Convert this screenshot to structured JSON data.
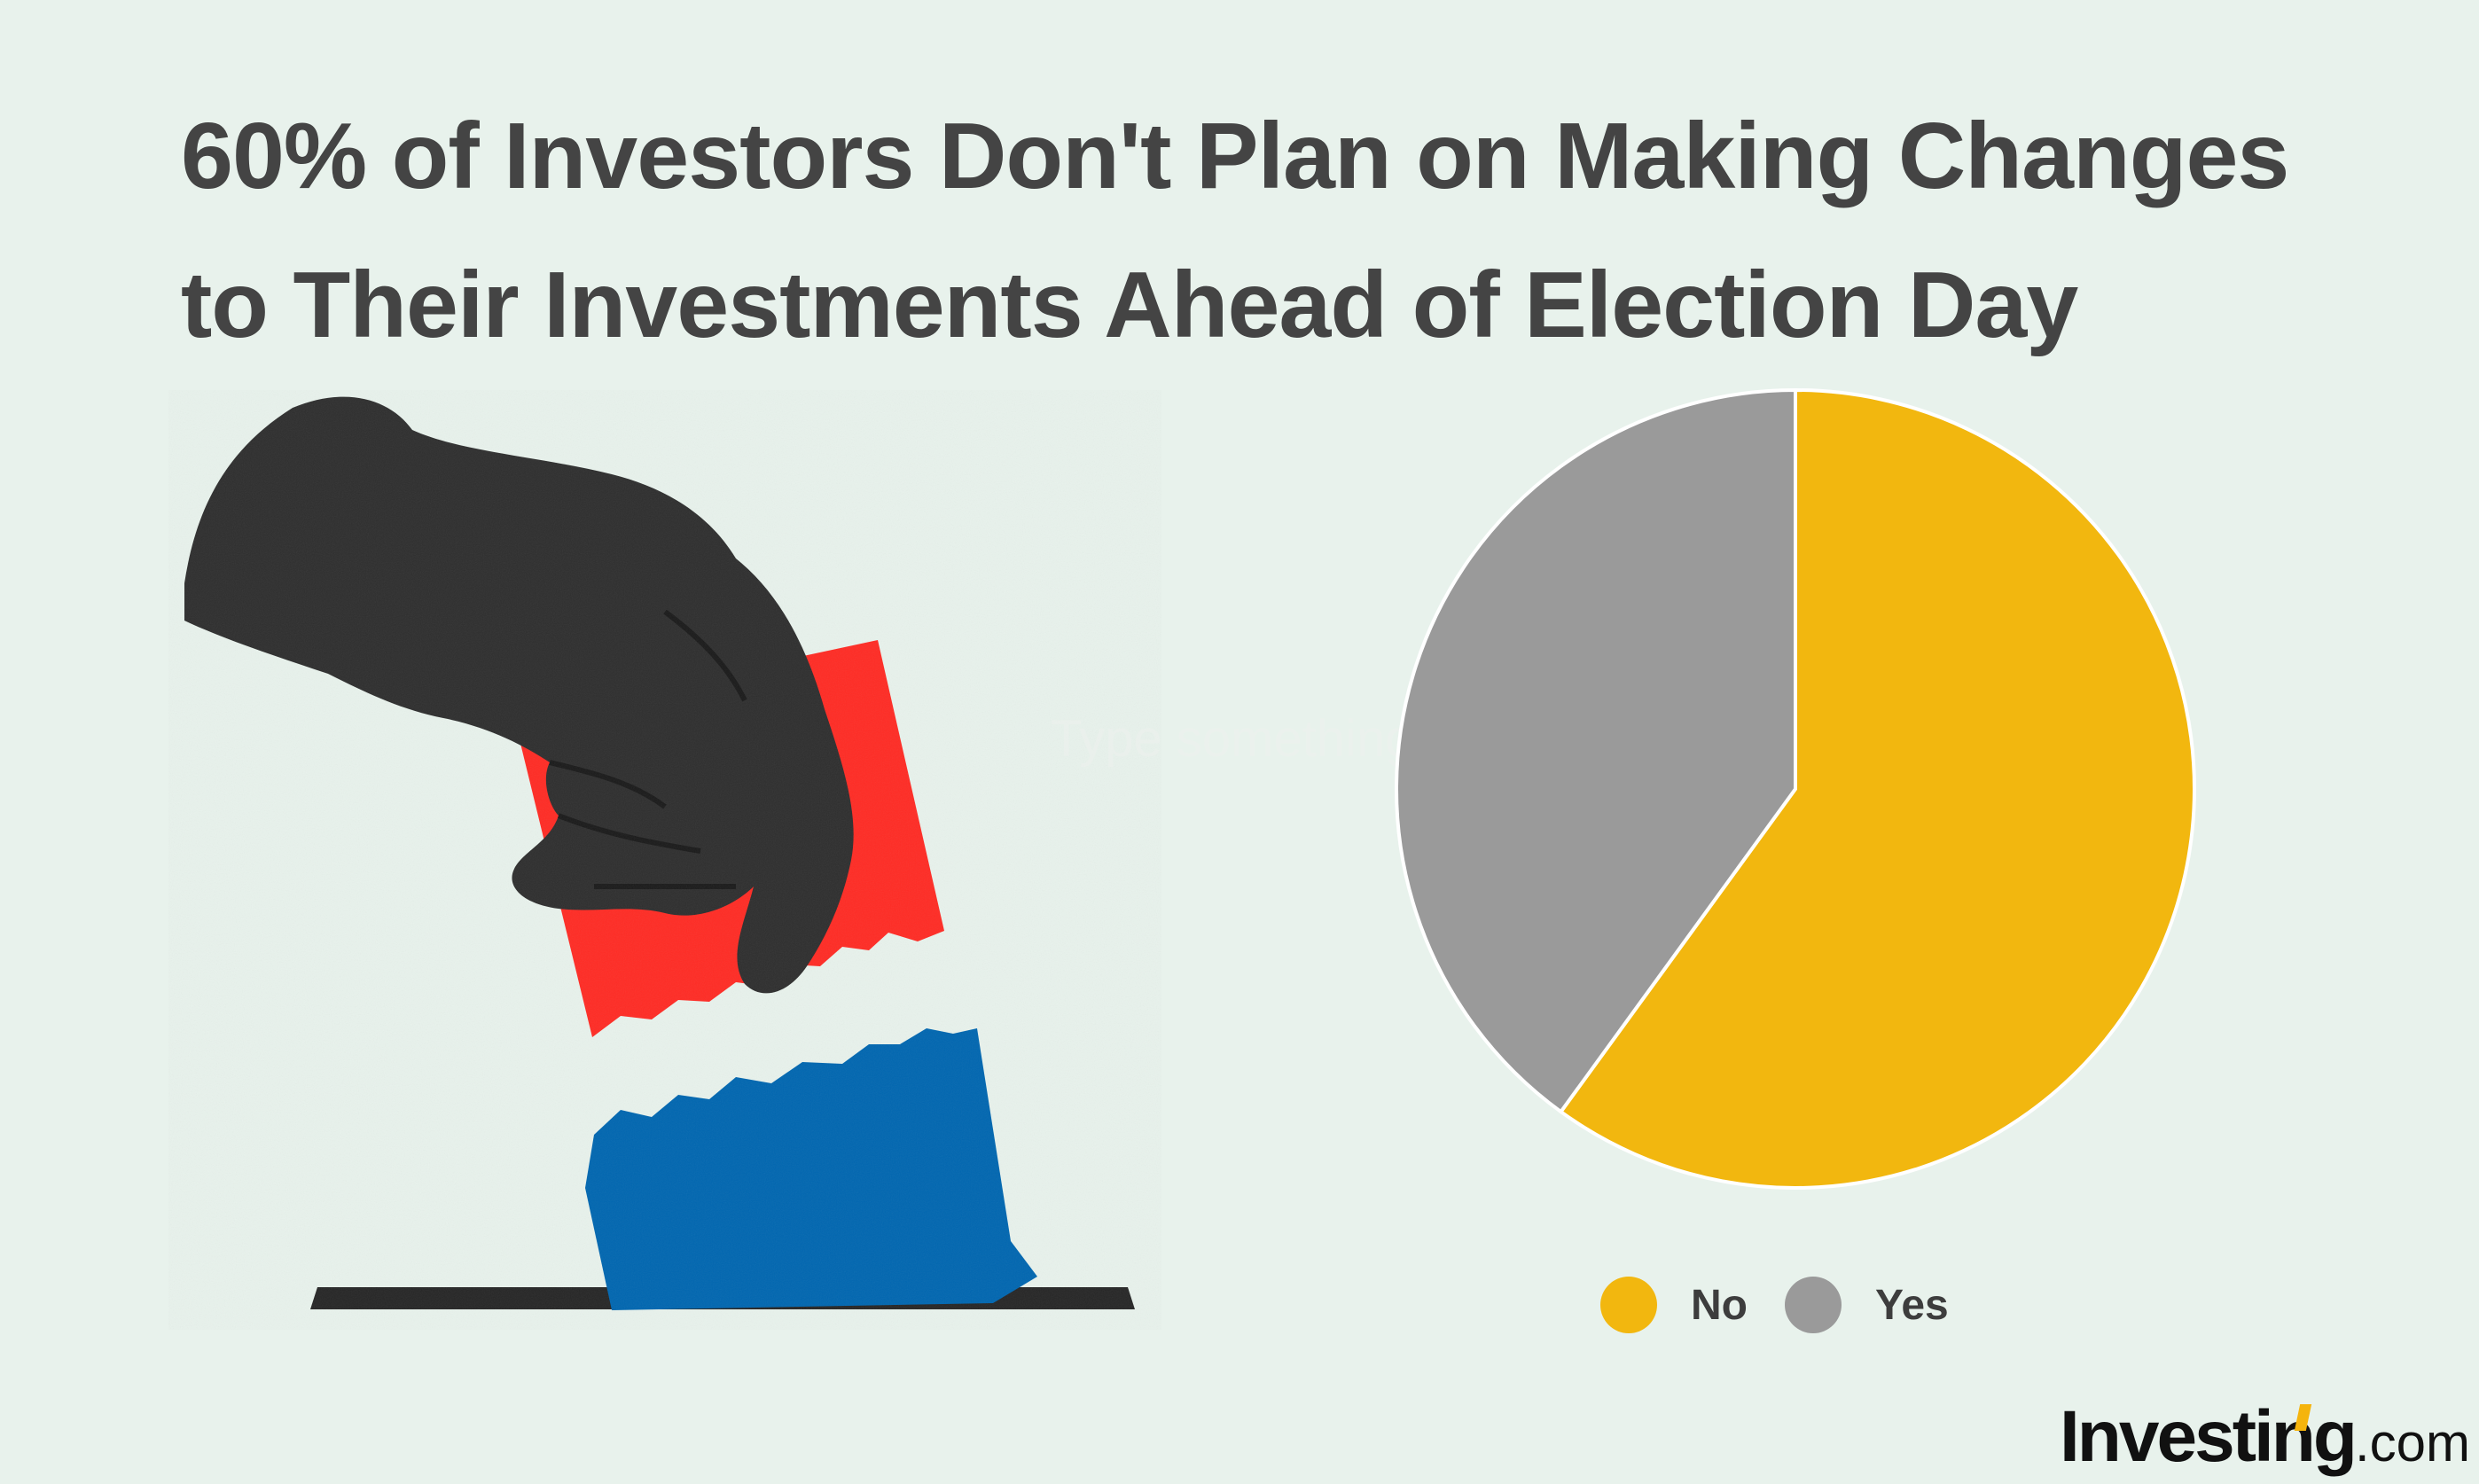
{
  "title_lines": [
    "60% of Investors Don't Plan on Making Changes",
    "to Their Investments Ahead of Election Day"
  ],
  "ghost_text": "Type something",
  "logo": {
    "name": "Investing",
    "suffix": ".com"
  },
  "chart_data": {
    "type": "pie",
    "title": "60% of Investors Don't Plan on Making Changes to Their Investments Ahead of Election Day",
    "slices": [
      {
        "label": "No",
        "value": 60,
        "color": "#f2b70f"
      },
      {
        "label": "Yes",
        "value": 40,
        "color": "#9a9a9a"
      }
    ],
    "legend_position": "bottom"
  },
  "legend": [
    {
      "label": "No",
      "color": "#f2b70f"
    },
    {
      "label": "Yes",
      "color": "#9a9a9a"
    }
  ],
  "colors": {
    "background": "#e8f2ec",
    "title": "#444444",
    "ballot_red": "#ff2b24",
    "ballot_blue": "#0066b0"
  }
}
